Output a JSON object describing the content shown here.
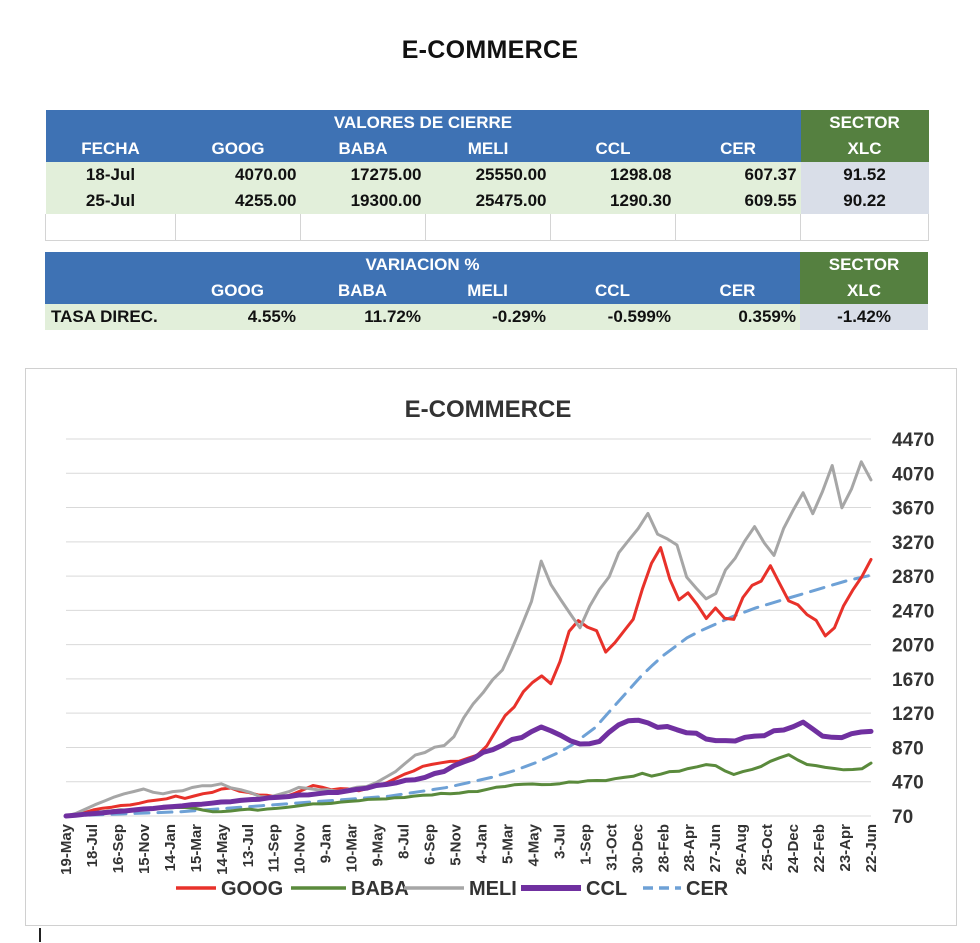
{
  "page_title": "E-COMMERCE",
  "table1": {
    "group_header": "VALORES DE CIERRE",
    "sector_label": "SECTOR",
    "columns": [
      "FECHA",
      "GOOG",
      "BABA",
      "MELI",
      "CCL",
      "CER",
      "XLC"
    ],
    "rows": [
      [
        "18-Jul",
        "4070.00",
        "17275.00",
        "25550.00",
        "1298.08",
        "607.37",
        "91.52"
      ],
      [
        "25-Jul",
        "4255.00",
        "19300.00",
        "25475.00",
        "1290.30",
        "609.55",
        "90.22"
      ]
    ]
  },
  "table2": {
    "group_header": "VARIACION %",
    "sector_label": "SECTOR",
    "columns": [
      "",
      "GOOG",
      "BABA",
      "MELI",
      "CCL",
      "CER",
      "XLC"
    ],
    "rows": [
      [
        "TASA DIREC.",
        "4.55%",
        "11.72%",
        "-0.29%",
        "-0.599%",
        "0.359%",
        "-1.42%"
      ]
    ]
  },
  "chart_data": {
    "type": "line",
    "title": "E-COMMERCE",
    "xlabel": "",
    "ylabel": "",
    "ylim": [
      70,
      4470
    ],
    "y_ticks": [
      70,
      470,
      870,
      1270,
      1670,
      2070,
      2470,
      2870,
      3270,
      3670,
      4070,
      4470
    ],
    "grid": true,
    "legend": "bottom",
    "x_tick_labels": [
      "19-May",
      "18-Jul",
      "16-Sep",
      "15-Nov",
      "14-Jan",
      "15-Mar",
      "14-May",
      "13-Jul",
      "11-Sep",
      "10-Nov",
      "9-Jan",
      "10-Mar",
      "9-May",
      "8-Jul",
      "6-Sep",
      "5-Nov",
      "4-Jan",
      "5-Mar",
      "4-May",
      "3-Jul",
      "1-Sep",
      "31-Oct",
      "30-Dec",
      "28-Feb",
      "28-Apr",
      "27-Jun",
      "26-Aug",
      "25-Oct",
      "24-Dec",
      "22-Feb",
      "23-Apr",
      "22-Jun"
    ],
    "series": [
      {
        "name": "GOOG",
        "color": "#e8312a",
        "style": "solid",
        "values": [
          70,
          90,
          110,
          140,
          160,
          175,
          190,
          200,
          220,
          240,
          260,
          270,
          300,
          280,
          300,
          330,
          350,
          380,
          400,
          360,
          340,
          320,
          310,
          290,
          300,
          330,
          380,
          430,
          400,
          380,
          390,
          380,
          370,
          390,
          420,
          460,
          500,
          560,
          600,
          640,
          680,
          690,
          700,
          720,
          740,
          780,
          900,
          1050,
          1250,
          1350,
          1500,
          1650,
          1700,
          1600,
          1900,
          2200,
          2350,
          2300,
          2200,
          2000,
          2100,
          2200,
          2400,
          2700,
          3000,
          3250,
          2800,
          2600,
          2700,
          2500,
          2400,
          2500,
          2350,
          2400,
          2600,
          2750,
          2850,
          2950,
          2800,
          2600,
          2500,
          2450,
          2350,
          2150,
          2300,
          2500,
          2700,
          2900,
          3020
        ]
      },
      {
        "name": "BABA",
        "color": "#5a8a3c",
        "style": "solid",
        "values": [
          70,
          80,
          100,
          110,
          120,
          130,
          140,
          140,
          150,
          150,
          160,
          160,
          170,
          170,
          160,
          140,
          120,
          120,
          130,
          140,
          150,
          140,
          150,
          160,
          170,
          180,
          200,
          210,
          210,
          220,
          230,
          240,
          250,
          260,
          270,
          270,
          280,
          290,
          300,
          310,
          320,
          330,
          330,
          340,
          350,
          360,
          380,
          400,
          420,
          430,
          440,
          450,
          430,
          440,
          450,
          460,
          470,
          480,
          480,
          490,
          500,
          520,
          540,
          560,
          540,
          560,
          580,
          600,
          620,
          640,
          680,
          650,
          600,
          560,
          580,
          620,
          650,
          700,
          760,
          780,
          720,
          680,
          650,
          640,
          630,
          600,
          620,
          620,
          680
        ]
      },
      {
        "name": "MELI",
        "color": "#a6a6a6",
        "style": "solid",
        "values": [
          70,
          100,
          150,
          200,
          250,
          290,
          330,
          360,
          380,
          350,
          330,
          350,
          370,
          400,
          420,
          430,
          440,
          400,
          380,
          340,
          300,
          290,
          320,
          360,
          400,
          390,
          380,
          370,
          360,
          380,
          400,
          420,
          460,
          520,
          600,
          680,
          780,
          820,
          860,
          900,
          1000,
          1200,
          1400,
          1500,
          1650,
          1800,
          2000,
          2300,
          2600,
          3000,
          2800,
          2600,
          2400,
          2300,
          2500,
          2700,
          2900,
          3100,
          3300,
          3450,
          3550,
          3400,
          3300,
          3200,
          2900,
          2700,
          2600,
          2700,
          2900,
          3100,
          3300,
          3400,
          3300,
          3100,
          3400,
          3700,
          3800,
          3600,
          3900,
          4100,
          3700,
          3900,
          4150,
          4050
        ]
      },
      {
        "name": "CCL",
        "color": "#7030a0",
        "style": "solid",
        "values": [
          70,
          80,
          90,
          100,
          110,
          120,
          130,
          140,
          150,
          160,
          170,
          180,
          190,
          200,
          210,
          220,
          230,
          240,
          250,
          260,
          270,
          280,
          290,
          300,
          310,
          320,
          330,
          340,
          350,
          360,
          380,
          400,
          420,
          440,
          460,
          480,
          500,
          520,
          560,
          600,
          650,
          700,
          750,
          800,
          850,
          900,
          950,
          1000,
          1050,
          1100,
          1080,
          1000,
          950,
          920,
          900,
          950,
          1050,
          1120,
          1200,
          1180,
          1150,
          1120,
          1100,
          1080,
          1050,
          1020,
          980,
          950,
          940,
          960,
          980,
          1000,
          1020,
          1050,
          1080,
          1120,
          1150,
          1100,
          1000,
          980,
          1000,
          1020,
          1050,
          1070
        ]
      },
      {
        "name": "CER",
        "color": "#6ea1d6",
        "style": "dashed",
        "values": [
          70,
          75,
          80,
          85,
          90,
          95,
          100,
          105,
          110,
          115,
          120,
          130,
          140,
          150,
          160,
          170,
          180,
          190,
          200,
          210,
          220,
          230,
          240,
          250,
          260,
          270,
          280,
          290,
          300,
          320,
          340,
          360,
          380,
          400,
          430,
          460,
          490,
          520,
          560,
          600,
          650,
          700,
          760,
          820,
          900,
          1000,
          1100,
          1250,
          1400,
          1550,
          1700,
          1830,
          1950,
          2050,
          2150,
          2220,
          2280,
          2340,
          2400,
          2450,
          2500,
          2540,
          2580,
          2620,
          2660,
          2700,
          2740,
          2780,
          2820,
          2850,
          2880
        ]
      }
    ]
  }
}
